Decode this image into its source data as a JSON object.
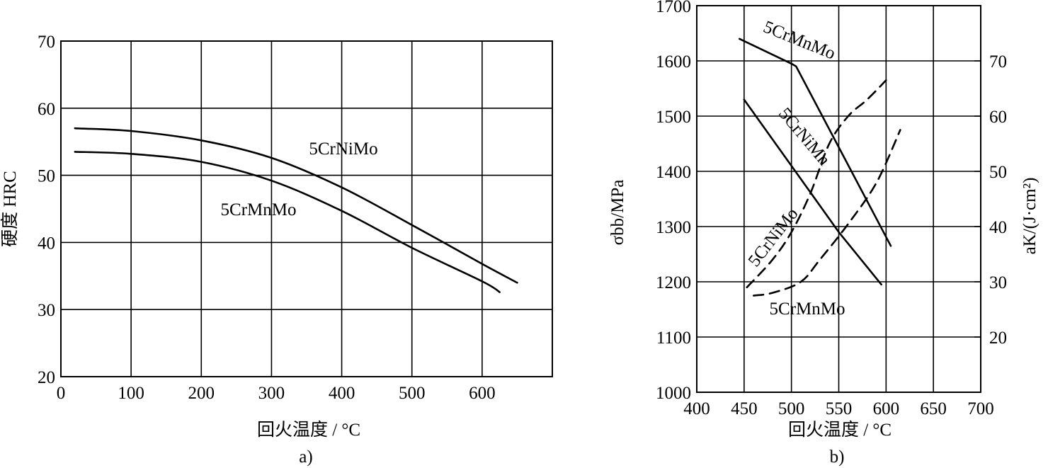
{
  "chart_data": [
    {
      "panel_label": "a)",
      "type": "line",
      "xlabel": "回火温度 / °C",
      "ylabel": "硬度 HRC",
      "xlim": [
        0,
        700
      ],
      "ylim": [
        20,
        70
      ],
      "xticks": [
        0,
        100,
        200,
        300,
        400,
        500,
        600
      ],
      "yticks": [
        20,
        30,
        40,
        50,
        60,
        70
      ],
      "grid": true,
      "series": [
        {
          "name": "5CrNiMo",
          "x": [
            20,
            100,
            200,
            300,
            400,
            500,
            600,
            650
          ],
          "y": [
            57,
            56.6,
            55.2,
            52.6,
            48.2,
            42.6,
            36.8,
            34
          ]
        },
        {
          "name": "5CrMnMo",
          "x": [
            20,
            100,
            200,
            300,
            400,
            500,
            600,
            625
          ],
          "y": [
            53.5,
            53.2,
            52,
            49.2,
            44.7,
            39.2,
            34.2,
            32.6
          ]
        }
      ]
    },
    {
      "panel_label": "b)",
      "type": "line",
      "xlabel": "回火温度 / °C",
      "ylabel_left": "σbb/MPa",
      "ylabel_right": "aK/(J·cm²)",
      "xlim": [
        400,
        700
      ],
      "ylim_left": [
        1000,
        1700
      ],
      "ylim_right": [
        10,
        80
      ],
      "xticks": [
        400,
        450,
        500,
        550,
        600,
        650,
        700
      ],
      "yticks_left": [
        1000,
        1100,
        1200,
        1300,
        1400,
        1500,
        1600,
        1700
      ],
      "yticks_right": [
        20,
        30,
        40,
        50,
        60,
        70
      ],
      "grid": true,
      "series": [
        {
          "name": "5CrMnMo",
          "axis": "left",
          "style": "solid",
          "x": [
            445,
            500,
            505,
            605
          ],
          "y": [
            1640,
            1595,
            1590,
            1265
          ]
        },
        {
          "name": "5CrNiMn",
          "axis": "left",
          "style": "solid",
          "x": [
            450,
            500,
            550,
            595
          ],
          "y": [
            1530,
            1410,
            1290,
            1195
          ]
        },
        {
          "name": "5CrNiMo",
          "axis": "right",
          "style": "dashed",
          "x": [
            453,
            480,
            500,
            520,
            540,
            560,
            580,
            600
          ],
          "y": [
            29,
            34,
            39,
            46,
            55,
            60,
            63,
            66.5
          ]
        },
        {
          "name": "5CrMnMo",
          "axis": "right",
          "style": "dashed",
          "x": [
            460,
            480,
            510,
            530,
            560,
            590,
            615
          ],
          "y": [
            27.5,
            28,
            30,
            34,
            40.5,
            48,
            57.5
          ]
        }
      ],
      "series_labels": [
        "5CrMnMo",
        "5CrNiMn",
        "5CrNiMo",
        "5CrMnMo"
      ]
    }
  ]
}
